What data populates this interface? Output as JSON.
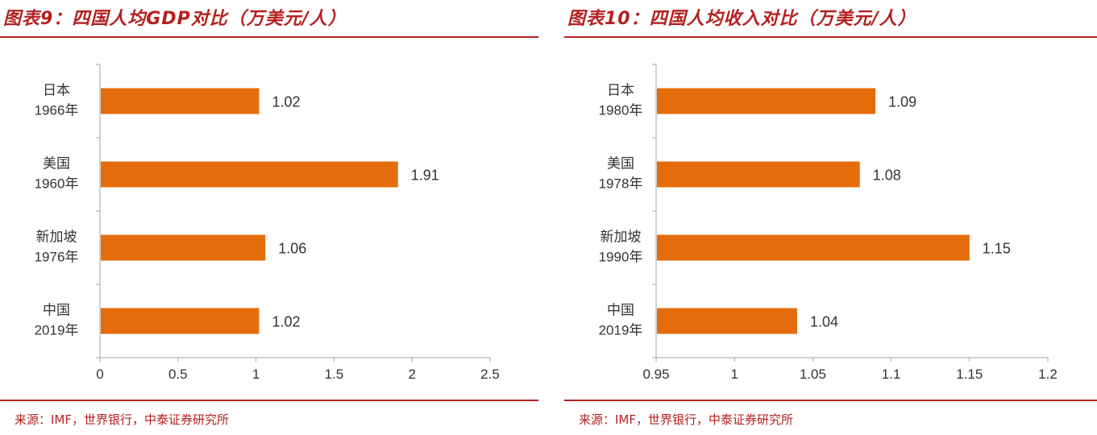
{
  "charts": [
    {
      "title": "图表9：四国人均GDP对比（万美元/人）",
      "source": "来源：IMF，世界银行，中泰证券研究所"
    },
    {
      "title": "图表10：四国人均收入对比（万美元/人）",
      "source": "来源：IMF，世界银行，中泰证券研究所"
    }
  ],
  "chart_data": [
    {
      "type": "bar",
      "orientation": "horizontal",
      "title": "图表9：四国人均GDP对比（万美元/人）",
      "categories": [
        [
          "日本",
          "1966年"
        ],
        [
          "美国",
          "1960年"
        ],
        [
          "新加坡",
          "1976年"
        ],
        [
          "中国",
          "2019年"
        ]
      ],
      "values": [
        1.02,
        1.91,
        1.06,
        1.02
      ],
      "value_labels": [
        "1.02",
        "1.91",
        "1.06",
        "1.02"
      ],
      "xlim": [
        0,
        2.5
      ],
      "xticks": [
        0,
        0.5,
        1,
        1.5,
        2,
        2.5
      ],
      "xtick_labels": [
        "0",
        "0.5",
        "1",
        "1.5",
        "2",
        "2.5"
      ],
      "grid": false,
      "bar_color": "#e46c0a"
    },
    {
      "type": "bar",
      "orientation": "horizontal",
      "title": "图表10：四国人均收入对比（万美元/人）",
      "categories": [
        [
          "日本",
          "1980年"
        ],
        [
          "美国",
          "1978年"
        ],
        [
          "新加坡",
          "1990年"
        ],
        [
          "中国",
          "2019年"
        ]
      ],
      "values": [
        1.09,
        1.08,
        1.15,
        1.04
      ],
      "value_labels": [
        "1.09",
        "1.08",
        "1.15",
        "1.04"
      ],
      "xlim": [
        0.95,
        1.2
      ],
      "xticks": [
        0.95,
        1,
        1.05,
        1.1,
        1.15,
        1.2
      ],
      "xtick_labels": [
        "0.95",
        "1",
        "1.05",
        "1.1",
        "1.15",
        "1.2"
      ],
      "grid": false,
      "bar_color": "#e46c0a"
    }
  ],
  "colors": {
    "accent": "#b51f1f",
    "bar": "#e46c0a",
    "axis": "#a6a6a6",
    "text": "#333333"
  }
}
